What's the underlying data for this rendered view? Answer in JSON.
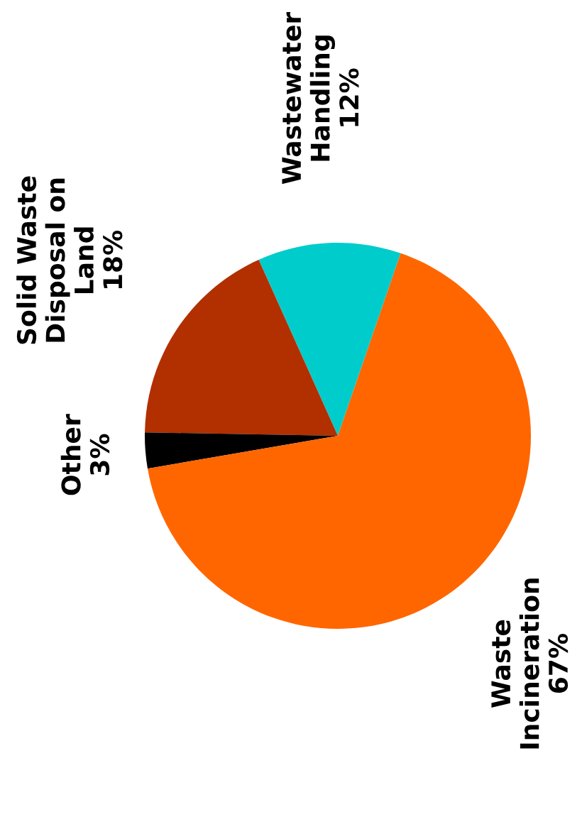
{
  "chart_data": {
    "type": "pie",
    "categories": [
      "Wastewater\nHandling",
      "Solid Waste\nDisposal on\nLand",
      "Other",
      "Waste\nIncineration"
    ],
    "values": [
      12,
      18,
      3,
      67
    ],
    "value_labels": [
      "12%",
      "18%",
      "3%",
      "67%"
    ],
    "colors": [
      "#00cccc",
      "#b22f00",
      "#000000",
      "#ff6600"
    ],
    "legend": false
  }
}
